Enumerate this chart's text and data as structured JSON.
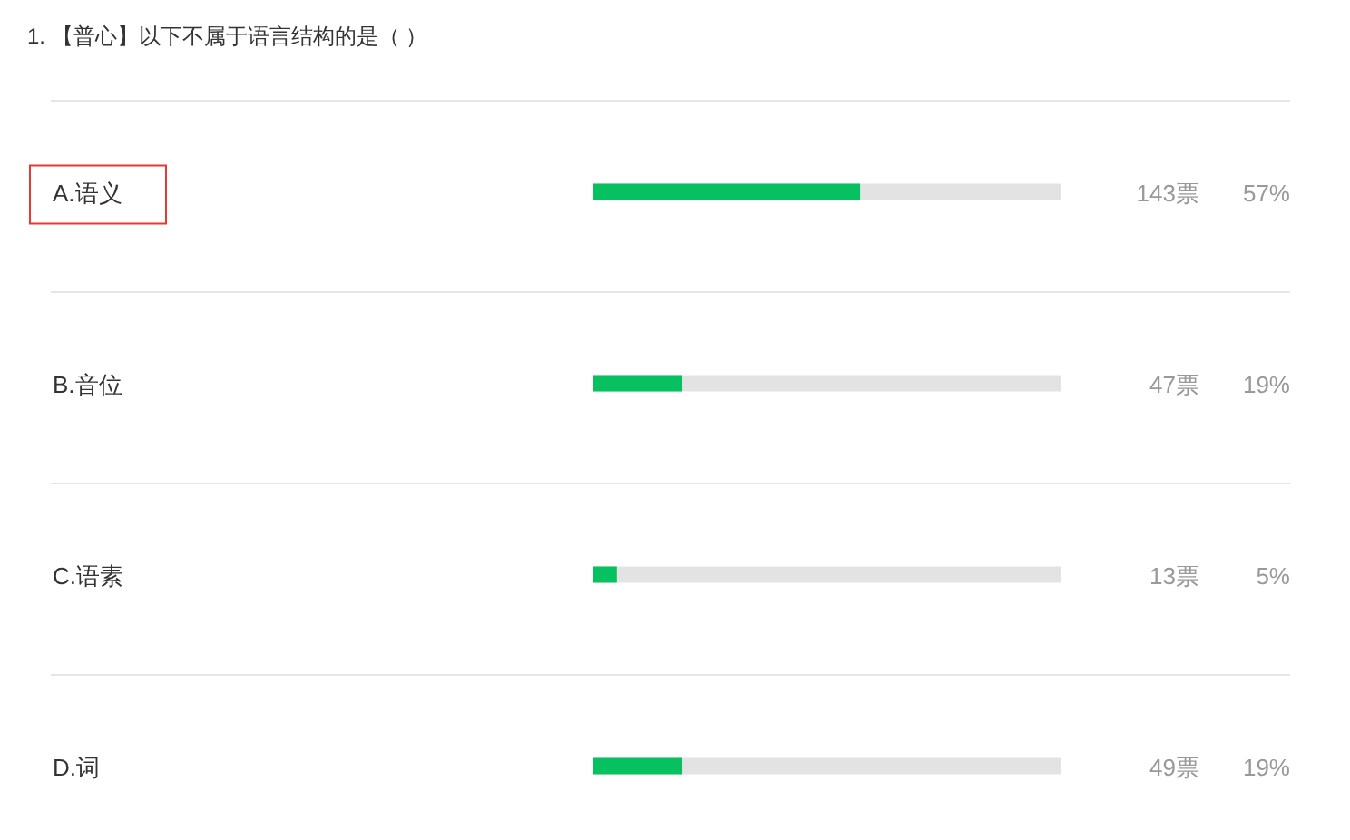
{
  "chart_data": {
    "type": "bar",
    "orientation": "horizontal",
    "title": "1. 【普心】以下不属于语言结构的是（ ）",
    "categories": [
      "A.语义",
      "B.音位",
      "C.语素",
      "D.词"
    ],
    "values": [
      57,
      19,
      5,
      19
    ],
    "color": "#07c160",
    "xlim": [
      0,
      100
    ],
    "value_labels": [
      "57%",
      "19%",
      "5%",
      "19%"
    ],
    "annotations": [
      "143票",
      "47票",
      "13票",
      "49票"
    ],
    "tick_labels": "y"
  }
}
